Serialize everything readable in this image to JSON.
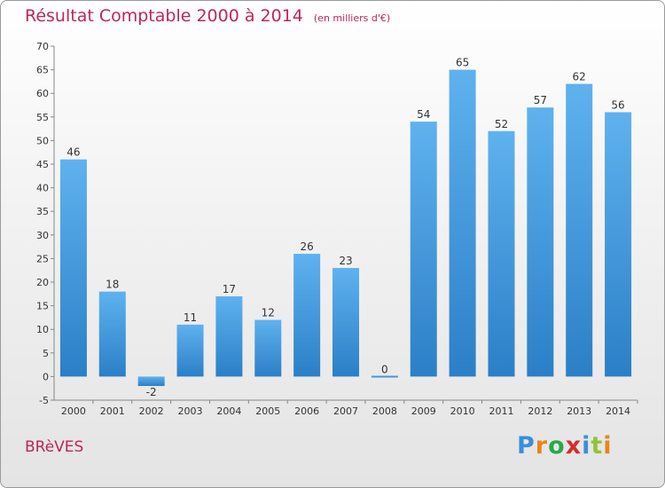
{
  "header": {
    "title": "Résultat Comptable 2000 à 2014",
    "unit": "(en milliers d'€)"
  },
  "footer": {
    "city": "BRèVES",
    "brand": "Proxiti",
    "brand_colors": [
      "#3a8fd9",
      "#e8861a",
      "#2aa84a",
      "#d62b2b",
      "#3a8fd9",
      "#8fc53a",
      "#e8861a"
    ]
  },
  "chart_data": {
    "type": "bar",
    "title": "Résultat Comptable 2000 à 2014",
    "xlabel": "",
    "ylabel": "",
    "categories": [
      "2000",
      "2001",
      "2002",
      "2003",
      "2004",
      "2005",
      "2006",
      "2007",
      "2008",
      "2009",
      "2010",
      "2011",
      "2012",
      "2013",
      "2014"
    ],
    "values": [
      46,
      18,
      -2,
      11,
      17,
      12,
      26,
      23,
      0,
      54,
      65,
      52,
      57,
      62,
      56
    ],
    "ylim": [
      -5,
      70
    ],
    "yticks": [
      -5,
      0,
      5,
      10,
      15,
      20,
      25,
      30,
      35,
      40,
      45,
      50,
      55,
      60,
      65,
      70
    ],
    "grid": false,
    "legend": "none",
    "bar_color": "#4a9fe0"
  }
}
